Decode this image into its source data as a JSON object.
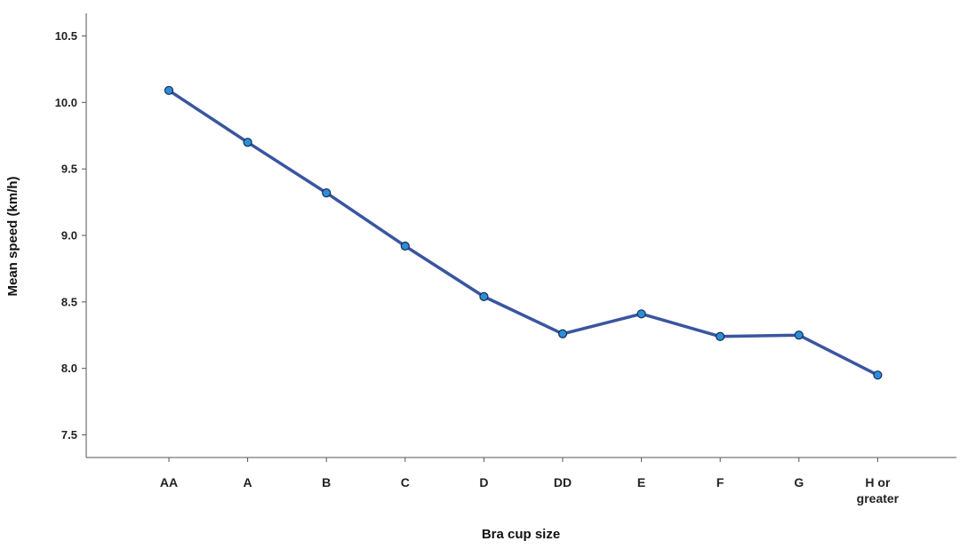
{
  "chart_data": {
    "type": "line",
    "title": "",
    "xlabel": "Bra cup size",
    "ylabel": "Mean speed (km/h)",
    "categories": [
      "AA",
      "A",
      "B",
      "C",
      "D",
      "DD",
      "E",
      "F",
      "G",
      "H or greater"
    ],
    "series": [
      {
        "values": [
          10.09,
          9.7,
          9.32,
          8.92,
          8.54,
          8.26,
          8.41,
          8.24,
          8.25,
          7.95
        ]
      }
    ],
    "ylim": [
      7.33,
      10.67
    ],
    "yticks": [
      "7.5",
      "8.0",
      "8.5",
      "9.0",
      "9.5",
      "10.0",
      "10.5"
    ],
    "grid": false,
    "legend": "none",
    "colors": {
      "line": "#3a55a0",
      "marker_fill": "#2b8fd6",
      "marker_edge": "#1a2a55",
      "axis": "#555555"
    }
  }
}
